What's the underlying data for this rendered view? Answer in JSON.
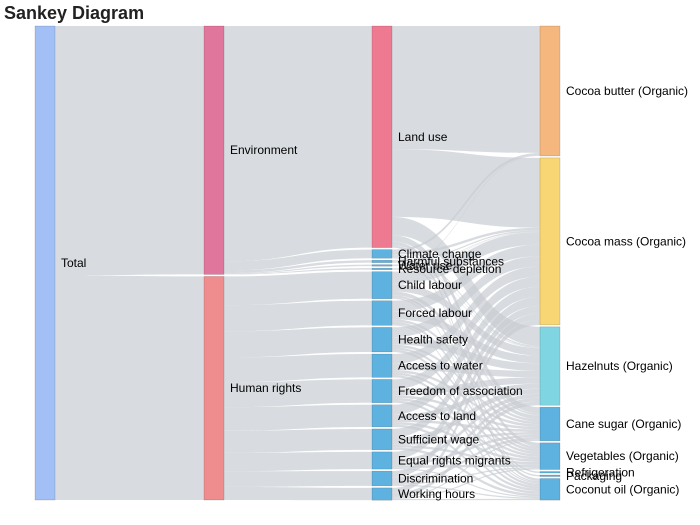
{
  "title": "Sankey Diagram",
  "colors": {
    "total": "#a2c0f5",
    "environment": "#e0769c",
    "human_rights": "#ef8c8e",
    "land_use": "#ee7a92",
    "impact": "#5eb2e0",
    "cocoa_butter": "#f6b77e",
    "cocoa_mass": "#f9d674",
    "hazelnuts": "#7fd5e1",
    "product_blue": "#5eb2e0",
    "link": "#c9cdd2"
  },
  "nodes": [
    {
      "id": "total",
      "label": "Total",
      "color": "total"
    },
    {
      "id": "env",
      "label": "Environment",
      "color": "environment"
    },
    {
      "id": "hr",
      "label": "Human rights",
      "color": "human_rights"
    },
    {
      "id": "land_use",
      "label": "Land use",
      "color": "land_use"
    },
    {
      "id": "climate",
      "label": "Climate change",
      "color": "impact"
    },
    {
      "id": "harmful",
      "label": "Harmful substances",
      "color": "impact"
    },
    {
      "id": "water_use",
      "label": "Water use",
      "color": "impact"
    },
    {
      "id": "resource",
      "label": "Resource depletion",
      "color": "impact"
    },
    {
      "id": "child",
      "label": "Child labour",
      "color": "impact"
    },
    {
      "id": "forced",
      "label": "Forced labour",
      "color": "impact"
    },
    {
      "id": "health",
      "label": "Health safety",
      "color": "impact"
    },
    {
      "id": "water_access",
      "label": "Access to water",
      "color": "impact"
    },
    {
      "id": "freedom",
      "label": "Freedom of association",
      "color": "impact"
    },
    {
      "id": "land_access",
      "label": "Access to land",
      "color": "impact"
    },
    {
      "id": "wage",
      "label": "Sufficient wage",
      "color": "impact"
    },
    {
      "id": "migrants",
      "label": "Equal rights migrants",
      "color": "impact"
    },
    {
      "id": "discrim",
      "label": "Discrimination",
      "color": "impact"
    },
    {
      "id": "hours",
      "label": "Working hours",
      "color": "impact"
    },
    {
      "id": "cocoa_butter",
      "label": "Cocoa butter (Organic)",
      "color": "cocoa_butter"
    },
    {
      "id": "cocoa_mass",
      "label": "Cocoa mass (Organic)",
      "color": "cocoa_mass"
    },
    {
      "id": "hazelnuts",
      "label": "Hazelnuts (Organic)",
      "color": "hazelnuts"
    },
    {
      "id": "cane_sugar",
      "label": "Cane sugar (Organic)",
      "color": "product_blue"
    },
    {
      "id": "vegetables",
      "label": "Vegetables (Organic)",
      "color": "product_blue"
    },
    {
      "id": "refrigeration",
      "label": "Refrigeration",
      "color": "product_blue"
    },
    {
      "id": "packaging",
      "label": "Packaging",
      "color": "product_blue"
    },
    {
      "id": "coconut",
      "label": "Coconut oil (Organic)",
      "color": "product_blue"
    }
  ],
  "links": [
    {
      "source": "total",
      "target": "env",
      "value": 190
    },
    {
      "source": "total",
      "target": "hr",
      "value": 171
    },
    {
      "source": "env",
      "target": "land_use",
      "value": 180
    },
    {
      "source": "env",
      "target": "climate",
      "value": 7
    },
    {
      "source": "env",
      "target": "harmful",
      "value": 2
    },
    {
      "source": "env",
      "target": "water_use",
      "value": 0.6
    },
    {
      "source": "env",
      "target": "resource",
      "value": 0.4
    },
    {
      "source": "hr",
      "target": "child",
      "value": 22
    },
    {
      "source": "hr",
      "target": "forced",
      "value": 20
    },
    {
      "source": "hr",
      "target": "health",
      "value": 20
    },
    {
      "source": "hr",
      "target": "water_access",
      "value": 19
    },
    {
      "source": "hr",
      "target": "freedom",
      "value": 19
    },
    {
      "source": "hr",
      "target": "land_access",
      "value": 18
    },
    {
      "source": "hr",
      "target": "wage",
      "value": 17
    },
    {
      "source": "hr",
      "target": "migrants",
      "value": 14
    },
    {
      "source": "hr",
      "target": "discrim",
      "value": 12
    },
    {
      "source": "hr",
      "target": "hours",
      "value": 10
    },
    {
      "source": "land_use",
      "target": "cocoa_butter",
      "value": 100
    },
    {
      "source": "land_use",
      "target": "cocoa_mass",
      "value": 55
    },
    {
      "source": "land_use",
      "target": "hazelnuts",
      "value": 15
    },
    {
      "source": "land_use",
      "target": "cane_sugar",
      "value": 5
    },
    {
      "source": "land_use",
      "target": "vegetables",
      "value": 3
    },
    {
      "source": "land_use",
      "target": "coconut",
      "value": 2
    },
    {
      "source": "climate",
      "target": "cocoa_butter",
      "value": 2
    },
    {
      "source": "climate",
      "target": "cocoa_mass",
      "value": 2
    },
    {
      "source": "climate",
      "target": "hazelnuts",
      "value": 1
    },
    {
      "source": "climate",
      "target": "cane_sugar",
      "value": 1
    },
    {
      "source": "climate",
      "target": "refrigeration",
      "value": 0.5
    },
    {
      "source": "climate",
      "target": "packaging",
      "value": 0.5
    },
    {
      "source": "harmful",
      "target": "cocoa_mass",
      "value": 1
    },
    {
      "source": "harmful",
      "target": "hazelnuts",
      "value": 0.5
    },
    {
      "source": "harmful",
      "target": "cane_sugar",
      "value": 0.5
    },
    {
      "source": "water_use",
      "target": "cocoa_butter",
      "value": 0.3
    },
    {
      "source": "water_use",
      "target": "cocoa_mass",
      "value": 0.3
    },
    {
      "source": "resource",
      "target": "cocoa_mass",
      "value": 0.2
    },
    {
      "source": "resource",
      "target": "hazelnuts",
      "value": 0.2
    },
    {
      "source": "child",
      "target": "cocoa_mass",
      "value": 10
    },
    {
      "source": "child",
      "target": "hazelnuts",
      "value": 6
    },
    {
      "source": "child",
      "target": "cane_sugar",
      "value": 3
    },
    {
      "source": "child",
      "target": "vegetables",
      "value": 2
    },
    {
      "source": "child",
      "target": "coconut",
      "value": 1
    },
    {
      "source": "forced",
      "target": "cocoa_mass",
      "value": 9
    },
    {
      "source": "forced",
      "target": "hazelnuts",
      "value": 6
    },
    {
      "source": "forced",
      "target": "cane_sugar",
      "value": 2
    },
    {
      "source": "forced",
      "target": "vegetables",
      "value": 2
    },
    {
      "source": "forced",
      "target": "coconut",
      "value": 1
    },
    {
      "source": "health",
      "target": "cocoa_mass",
      "value": 8
    },
    {
      "source": "health",
      "target": "hazelnuts",
      "value": 6
    },
    {
      "source": "health",
      "target": "cane_sugar",
      "value": 2
    },
    {
      "source": "health",
      "target": "vegetables",
      "value": 2
    },
    {
      "source": "health",
      "target": "coconut",
      "value": 2
    },
    {
      "source": "water_access",
      "target": "cocoa_mass",
      "value": 8
    },
    {
      "source": "water_access",
      "target": "hazelnuts",
      "value": 5
    },
    {
      "source": "water_access",
      "target": "cane_sugar",
      "value": 2
    },
    {
      "source": "water_access",
      "target": "vegetables",
      "value": 2
    },
    {
      "source": "water_access",
      "target": "coconut",
      "value": 2
    },
    {
      "source": "freedom",
      "target": "cocoa_mass",
      "value": 8
    },
    {
      "source": "freedom",
      "target": "hazelnuts",
      "value": 5
    },
    {
      "source": "freedom",
      "target": "cane_sugar",
      "value": 2
    },
    {
      "source": "freedom",
      "target": "vegetables",
      "value": 2
    },
    {
      "source": "freedom",
      "target": "coconut",
      "value": 2
    },
    {
      "source": "land_access",
      "target": "cocoa_mass",
      "value": 8
    },
    {
      "source": "land_access",
      "target": "hazelnuts",
      "value": 4
    },
    {
      "source": "land_access",
      "target": "cane_sugar",
      "value": 2
    },
    {
      "source": "land_access",
      "target": "vegetables",
      "value": 2
    },
    {
      "source": "land_access",
      "target": "coconut",
      "value": 2
    },
    {
      "source": "wage",
      "target": "cocoa_mass",
      "value": 7
    },
    {
      "source": "wage",
      "target": "hazelnuts",
      "value": 4
    },
    {
      "source": "wage",
      "target": "cane_sugar",
      "value": 2
    },
    {
      "source": "wage",
      "target": "vegetables",
      "value": 2
    },
    {
      "source": "wage",
      "target": "coconut",
      "value": 2
    },
    {
      "source": "migrants",
      "target": "cocoa_mass",
      "value": 6
    },
    {
      "source": "migrants",
      "target": "hazelnuts",
      "value": 3
    },
    {
      "source": "migrants",
      "target": "cane_sugar",
      "value": 2
    },
    {
      "source": "migrants",
      "target": "vegetables",
      "value": 2
    },
    {
      "source": "migrants",
      "target": "coconut",
      "value": 1
    },
    {
      "source": "discrim",
      "target": "cocoa_mass",
      "value": 5
    },
    {
      "source": "discrim",
      "target": "hazelnuts",
      "value": 3
    },
    {
      "source": "discrim",
      "target": "cane_sugar",
      "value": 2
    },
    {
      "source": "discrim",
      "target": "vegetables",
      "value": 1
    },
    {
      "source": "discrim",
      "target": "coconut",
      "value": 1
    },
    {
      "source": "hours",
      "target": "cocoa_mass",
      "value": 4
    },
    {
      "source": "hours",
      "target": "hazelnuts",
      "value": 3
    },
    {
      "source": "hours",
      "target": "cane_sugar",
      "value": 1
    },
    {
      "source": "hours",
      "target": "vegetables",
      "value": 1
    },
    {
      "source": "hours",
      "target": "coconut",
      "value": 1
    }
  ]
}
